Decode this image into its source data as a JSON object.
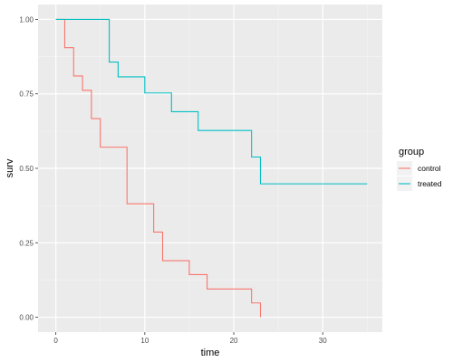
{
  "chart_data": {
    "type": "line",
    "step": true,
    "xlabel": "time",
    "ylabel": "surv",
    "xlim": [
      -2.0,
      36.7
    ],
    "ylim": [
      -0.05,
      1.05
    ],
    "x_ticks": [
      0,
      10,
      20,
      30
    ],
    "x_tick_labels": [
      "0",
      "10",
      "20",
      "30"
    ],
    "y_ticks": [
      0,
      0.25,
      0.5,
      0.75,
      1
    ],
    "y_tick_labels": [
      "0.00",
      "0.25",
      "0.50",
      "0.75",
      "1.00"
    ],
    "grid": true,
    "legend": {
      "title": "group",
      "position": "right"
    },
    "series": [
      {
        "name": "control",
        "color": "#F8766D",
        "x": [
          0,
          1,
          2,
          3,
          4,
          5,
          8,
          11,
          12,
          15,
          17,
          22,
          23
        ],
        "y": [
          1.0,
          0.905,
          0.81,
          0.762,
          0.667,
          0.571,
          0.381,
          0.286,
          0.19,
          0.143,
          0.095,
          0.048,
          0.0
        ]
      },
      {
        "name": "treated",
        "color": "#00BFC4",
        "x": [
          0,
          6,
          7,
          10,
          13,
          16,
          22,
          23,
          35
        ],
        "y": [
          1.0,
          0.857,
          0.807,
          0.753,
          0.69,
          0.627,
          0.538,
          0.448,
          0.448
        ]
      }
    ]
  }
}
